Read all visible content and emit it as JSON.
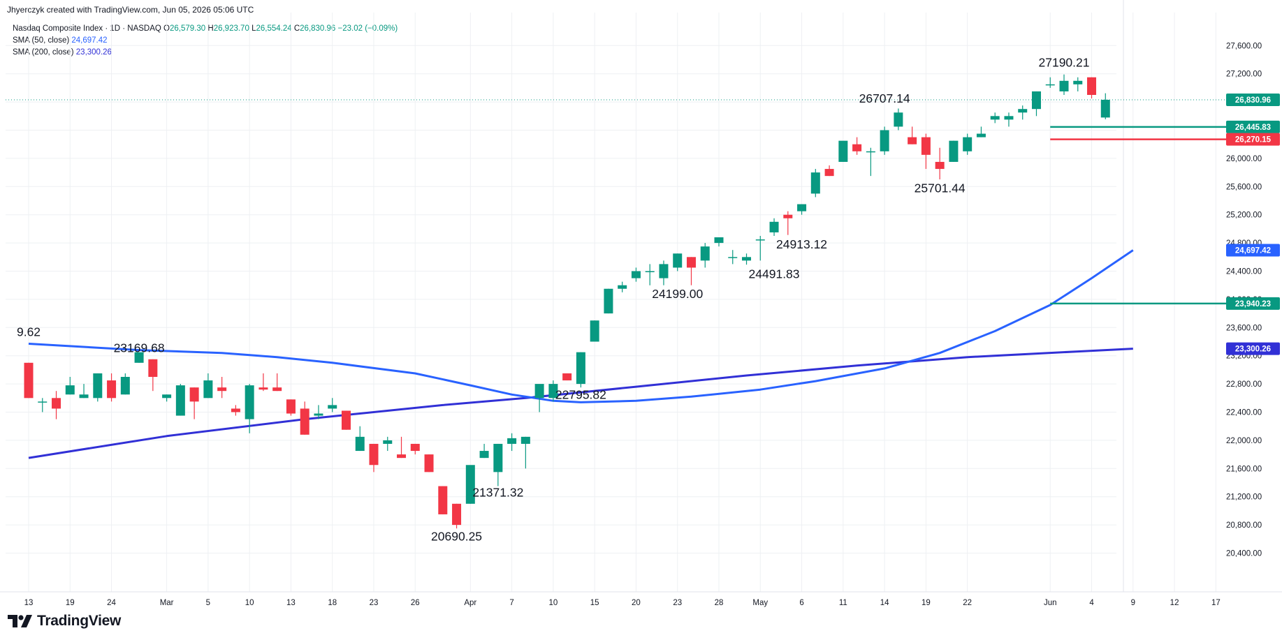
{
  "header": {
    "attribution": "Jhyerczyk created with TradingView.com, Jun 05, 2026 05:06 UTC"
  },
  "legend": {
    "symbol": "Nasdaq Composite Index · 1D · NASDAQ",
    "open_label": "O",
    "open": "26,579.30",
    "high_label": "H",
    "high": "26,923.70",
    "low_label": "L",
    "low": "26,554.24",
    "close_label": "C",
    "close": "26,830.96",
    "change": "−23.02 (−0.09%)",
    "sma50_label": "SMA (50, close)",
    "sma50_value": "24,697.42",
    "sma200_label": "SMA (200, close)",
    "sma200_value": "23,300.26"
  },
  "logo": {
    "text": "TradingView"
  },
  "colors": {
    "up": "#089981",
    "down": "#f23645",
    "sma50": "#2962ff",
    "sma200": "#3130d6",
    "grid": "#eef0f3",
    "text": "#131722",
    "price_line": "#089981"
  },
  "chart_data": {
    "type": "candlestick",
    "ylim": [
      20000,
      27900
    ],
    "y_ticks": [
      "20,400.00",
      "20,800.00",
      "21,200.00",
      "21,600.00",
      "22,000.00",
      "22,400.00",
      "22,800.00",
      "23,200.00",
      "23,600.00",
      "24,000.00",
      "24,400.00",
      "24,800.00",
      "25,200.00",
      "25,600.00",
      "26,000.00",
      "26,400.00",
      "26,800.00",
      "27,200.00",
      "27,600.00"
    ],
    "y_tick_values": [
      20400,
      20800,
      21200,
      21600,
      22000,
      22400,
      22800,
      23200,
      23600,
      24000,
      24400,
      24800,
      25200,
      25600,
      26000,
      26400,
      26800,
      27200,
      27600
    ],
    "x_ticks": [
      {
        "label": "13",
        "i": 0
      },
      {
        "label": "19",
        "i": 3
      },
      {
        "label": "24",
        "i": 6
      },
      {
        "label": "Mar",
        "i": 10
      },
      {
        "label": "5",
        "i": 13
      },
      {
        "label": "10",
        "i": 16
      },
      {
        "label": "13",
        "i": 19
      },
      {
        "label": "18",
        "i": 22
      },
      {
        "label": "23",
        "i": 25
      },
      {
        "label": "26",
        "i": 28
      },
      {
        "label": "Apr",
        "i": 32
      },
      {
        "label": "7",
        "i": 35
      },
      {
        "label": "10",
        "i": 38
      },
      {
        "label": "15",
        "i": 41
      },
      {
        "label": "20",
        "i": 44
      },
      {
        "label": "23",
        "i": 47
      },
      {
        "label": "28",
        "i": 50
      },
      {
        "label": "May",
        "i": 53
      },
      {
        "label": "6",
        "i": 56
      },
      {
        "label": "11",
        "i": 59
      },
      {
        "label": "14",
        "i": 62
      },
      {
        "label": "19",
        "i": 65
      },
      {
        "label": "22",
        "i": 68
      },
      {
        "label": "Jun",
        "i": 74
      },
      {
        "label": "4",
        "i": 77
      },
      {
        "label": "9",
        "i": 80
      },
      {
        "label": "12",
        "i": 83
      },
      {
        "label": "17",
        "i": 86
      }
    ],
    "candles": [
      [
        23100,
        23100,
        22600,
        22600
      ],
      [
        22550,
        22600,
        22400,
        22550
      ],
      [
        22600,
        22700,
        22300,
        22450
      ],
      [
        22650,
        22900,
        22650,
        22780
      ],
      [
        22600,
        22800,
        22600,
        22650
      ],
      [
        22600,
        22950,
        22550,
        22950
      ],
      [
        22850,
        22950,
        22550,
        22600
      ],
      [
        22650,
        22950,
        22650,
        22900
      ],
      [
        23100,
        23200,
        23100,
        23250
      ],
      [
        23150,
        23150,
        22700,
        22900
      ],
      [
        22600,
        22650,
        22550,
        22650
      ],
      [
        22350,
        22800,
        22350,
        22780
      ],
      [
        22750,
        22750,
        22300,
        22550
      ],
      [
        22600,
        22950,
        22600,
        22850
      ],
      [
        22750,
        22900,
        22600,
        22700
      ],
      [
        22450,
        22500,
        22350,
        22400
      ],
      [
        22300,
        22800,
        22100,
        22780
      ],
      [
        22750,
        22950,
        22700,
        22720
      ],
      [
        22750,
        22950,
        22700,
        22700
      ],
      [
        22580,
        22580,
        22350,
        22380
      ],
      [
        22450,
        22550,
        22080,
        22080
      ],
      [
        22350,
        22500,
        22300,
        22380
      ],
      [
        22450,
        22600,
        22400,
        22500
      ],
      [
        22420,
        22420,
        22150,
        22150
      ],
      [
        21850,
        22200,
        21850,
        22050
      ],
      [
        21950,
        21950,
        21550,
        21650
      ],
      [
        21950,
        22050,
        21850,
        22000
      ],
      [
        21800,
        22050,
        21750,
        21750
      ],
      [
        21950,
        21950,
        21800,
        21850
      ],
      [
        21800,
        21800,
        21550,
        21550
      ],
      [
        21350,
        21350,
        20950,
        20950
      ],
      [
        21100,
        21100,
        20750,
        20800
      ],
      [
        21100,
        21620,
        21100,
        21650
      ],
      [
        21750,
        21950,
        21750,
        21850
      ],
      [
        21550,
        21950,
        21350,
        21950
      ],
      [
        21950,
        22100,
        21850,
        22030
      ],
      [
        21950,
        22050,
        21600,
        22050
      ],
      [
        22600,
        22750,
        22400,
        22800
      ],
      [
        22600,
        22850,
        22550,
        22800
      ],
      [
        22950,
        22950,
        22850,
        22850
      ],
      [
        22800,
        23250,
        22750,
        23250
      ],
      [
        23400,
        23700,
        23400,
        23700
      ],
      [
        23800,
        24150,
        23800,
        24150
      ],
      [
        24150,
        24250,
        24100,
        24200
      ],
      [
        24300,
        24450,
        24250,
        24400
      ],
      [
        24400,
        24500,
        24199,
        24400
      ],
      [
        24300,
        24550,
        24200,
        24500
      ],
      [
        24450,
        24650,
        24400,
        24650
      ],
      [
        24600,
        24600,
        24200,
        24450
      ],
      [
        24550,
        24800,
        24450,
        24750
      ],
      [
        24800,
        24850,
        24750,
        24880
      ],
      [
        24600,
        24700,
        24500,
        24600
      ],
      [
        24550,
        24650,
        24491.83,
        24600
      ],
      [
        24850,
        24900,
        24550,
        24850
      ],
      [
        24950,
        25150,
        24900,
        25100
      ],
      [
        25200,
        25250,
        24913,
        25150
      ],
      [
        25250,
        25350,
        25200,
        25350
      ],
      [
        25500,
        25850,
        25450,
        25800
      ],
      [
        25850,
        25900,
        25750,
        25750
      ],
      [
        25950,
        26200,
        25950,
        26250
      ],
      [
        26200,
        26300,
        26050,
        26100
      ],
      [
        26100,
        26150,
        25750,
        26100
      ],
      [
        26100,
        26450,
        26050,
        26400
      ],
      [
        26450,
        26707,
        26400,
        26650
      ],
      [
        26300,
        26450,
        26200,
        26200
      ],
      [
        26300,
        26350,
        25850,
        26050
      ],
      [
        25950,
        26150,
        25701.44,
        25850
      ],
      [
        25950,
        26250,
        25950,
        26250
      ],
      [
        26100,
        26350,
        26050,
        26300
      ],
      [
        26300,
        26450,
        26300,
        26350
      ],
      [
        26550,
        26650,
        26500,
        26600
      ],
      [
        26550,
        26650,
        26450,
        26600
      ],
      [
        26650,
        26750,
        26550,
        26700
      ],
      [
        26700,
        26950,
        26600,
        26950
      ],
      [
        27050,
        27150,
        27000,
        27050
      ],
      [
        26950,
        27190.21,
        26900,
        27100
      ],
      [
        27050,
        27150,
        26950,
        27100
      ],
      [
        27150,
        27150,
        26850,
        26900
      ],
      [
        26579.3,
        26923.7,
        26554.24,
        26830.96
      ]
    ],
    "sma50": [
      [
        0,
        23370
      ],
      [
        8,
        23280
      ],
      [
        14,
        23240
      ],
      [
        18,
        23180
      ],
      [
        22,
        23100
      ],
      [
        28,
        22950
      ],
      [
        32,
        22780
      ],
      [
        35,
        22650
      ],
      [
        38,
        22560
      ],
      [
        40,
        22540
      ],
      [
        44,
        22560
      ],
      [
        48,
        22620
      ],
      [
        53,
        22720
      ],
      [
        57,
        22840
      ],
      [
        62,
        23020
      ],
      [
        66,
        23240
      ],
      [
        70,
        23550
      ],
      [
        74,
        23920
      ],
      [
        77,
        24300
      ],
      [
        80,
        24697.42
      ]
    ],
    "sma200": [
      [
        0,
        21750
      ],
      [
        10,
        22060
      ],
      [
        20,
        22300
      ],
      [
        30,
        22500
      ],
      [
        36,
        22600
      ],
      [
        44,
        22760
      ],
      [
        52,
        22920
      ],
      [
        60,
        23060
      ],
      [
        68,
        23180
      ],
      [
        76,
        23260
      ],
      [
        80,
        23300.26
      ]
    ],
    "annotations": [
      {
        "text": "23169.68",
        "i": 8,
        "y": 23250
      },
      {
        "text": "20690.25",
        "i": 31,
        "y": 20580
      },
      {
        "text": "21371.32",
        "i": 34,
        "y": 21200
      },
      {
        "text": "22795.82",
        "i": 40,
        "y": 22590
      },
      {
        "text": "24199.00",
        "i": 47,
        "y": 24020
      },
      {
        "text": "24491.83",
        "i": 54,
        "y": 24300
      },
      {
        "text": "24913.12",
        "i": 56,
        "y": 24720
      },
      {
        "text": "26707.14",
        "i": 62,
        "y": 26790
      },
      {
        "text": "25701.44",
        "i": 66,
        "y": 25520
      },
      {
        "text": "27190.21",
        "i": 75,
        "y": 27300
      },
      {
        "text": "9.62",
        "i": 0,
        "y": 23480
      }
    ],
    "hlines": [
      {
        "value": 26445.83,
        "label": "26,445.83",
        "color": "#089981"
      },
      {
        "value": 26270.15,
        "label": "26,270.15",
        "color": "#f23645"
      },
      {
        "value": 23940.23,
        "label": "23,940.23",
        "color": "#089981"
      }
    ],
    "price_line": {
      "value": 26830.96,
      "label": "26,830.96"
    },
    "sma_labels": [
      {
        "value": 24697.42,
        "label": "24,697.42",
        "color": "#2962ff"
      },
      {
        "value": 23300.26,
        "label": "23,300.26",
        "color": "#3130d6"
      }
    ]
  }
}
